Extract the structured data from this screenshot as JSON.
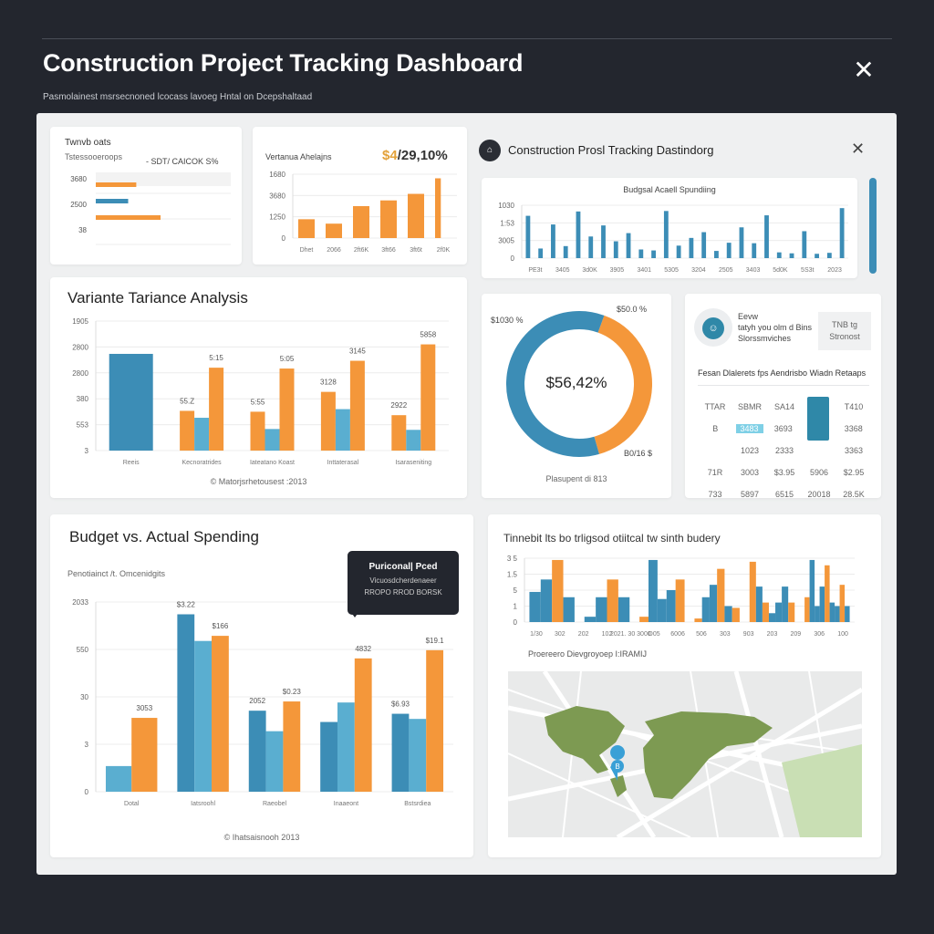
{
  "colors": {
    "orange": "#f4973a",
    "blue": "#3c8db6",
    "lightblue": "#5aaed0",
    "dark": "#23262e",
    "map_green": "#7d9a52"
  },
  "header": {
    "title": "Construction Project Tracking Dashboard",
    "subtitle": "Pasmolainest msrsecnoned lcocass lavoeg Hntal on Dcepshaltaad",
    "close_icon": "close-icon"
  },
  "card1": {
    "title": "Twnvb oats",
    "subtitle": "Tstessooeroops",
    "legend": "- SDT/ CAICOK S%",
    "chart": {
      "ticks": [
        "3680",
        "2500",
        "38"
      ],
      "bars": [
        {
          "v": 30,
          "c": "orange"
        },
        {
          "v": 24,
          "c": "blue"
        },
        {
          "v": 48,
          "c": "orange"
        }
      ],
      "xmax": 100
    }
  },
  "card2": {
    "title": "Vertanua Ahelajns",
    "value_highlight": "$4",
    "value_rest": "/29,10%",
    "chart": {
      "ymax": 3900,
      "ticks": [
        "0",
        "1250",
        "3680",
        "1680"
      ],
      "xlabels": [
        "Dhet",
        "2066",
        "2ft6K",
        "3ft66",
        "3ft6t",
        "2f0K"
      ],
      "groups": [
        [
          {
            "v": 1150,
            "c": "orange"
          }
        ],
        [
          {
            "v": 880,
            "c": "orange"
          }
        ],
        [
          {
            "v": 1950,
            "c": "orange"
          }
        ],
        [
          {
            "v": 2300,
            "c": "orange"
          }
        ],
        [
          {
            "v": 2700,
            "c": "orange"
          }
        ],
        [
          {
            "v": 3650,
            "c": "orange",
            "thin": true
          }
        ]
      ]
    }
  },
  "window": {
    "title": "Construction Prosl Tracking Dastindorg",
    "chart_title": "Budgsal Acaell Spundiing",
    "chart": {
      "ymax": 1.1,
      "ticks": [
        "0",
        "3005",
        "1:53",
        "1030"
      ],
      "xlabels": [
        "PE3t",
        "3405",
        "3d0K",
        "3905",
        "3401",
        "5305",
        "3204",
        "2505",
        "3403",
        "5d0K",
        "5S3t",
        "2023"
      ],
      "groups": [
        [
          {
            "v": 0.88,
            "c": "blue"
          }
        ],
        [
          {
            "v": 0.2,
            "c": "blue"
          }
        ],
        [
          {
            "v": 0.7,
            "c": "blue"
          }
        ],
        [
          {
            "v": 0.25,
            "c": "blue"
          }
        ],
        [
          {
            "v": 0.97,
            "c": "blue"
          }
        ],
        [
          {
            "v": 0.45,
            "c": "blue"
          }
        ],
        [
          {
            "v": 0.68,
            "c": "blue"
          }
        ],
        [
          {
            "v": 0.35,
            "c": "blue"
          }
        ],
        [
          {
            "v": 0.52,
            "c": "blue"
          }
        ],
        [
          {
            "v": 0.18,
            "c": "blue"
          }
        ],
        [
          {
            "v": 0.16,
            "c": "blue"
          }
        ],
        [
          {
            "v": 0.98,
            "c": "blue"
          }
        ],
        [
          {
            "v": 0.26,
            "c": "blue"
          }
        ],
        [
          {
            "v": 0.42,
            "c": "blue"
          }
        ],
        [
          {
            "v": 0.54,
            "c": "blue"
          }
        ],
        [
          {
            "v": 0.15,
            "c": "blue"
          }
        ],
        [
          {
            "v": 0.32,
            "c": "blue"
          }
        ],
        [
          {
            "v": 0.64,
            "c": "blue"
          }
        ],
        [
          {
            "v": 0.31,
            "c": "blue"
          }
        ],
        [
          {
            "v": 0.89,
            "c": "blue"
          }
        ],
        [
          {
            "v": 0.12,
            "c": "blue"
          }
        ],
        [
          {
            "v": 0.1,
            "c": "blue"
          }
        ],
        [
          {
            "v": 0.56,
            "c": "blue"
          }
        ],
        [
          {
            "v": 0.09,
            "c": "blue"
          }
        ],
        [
          {
            "v": 0.11,
            "c": "blue"
          }
        ],
        [
          {
            "v": 1.04,
            "c": "blue"
          }
        ]
      ]
    }
  },
  "variance": {
    "title": "Variante Tariance Analysis",
    "footer": "© Matorjsrhetousest :2013",
    "chart": {
      "ymax": 150,
      "ticks": [
        "3",
        "553",
        "380",
        "2800",
        "2800",
        "1905"
      ],
      "xlabels": [
        "Reeis",
        "Kecnoratrides",
        "Iateatano Koast",
        "Inttaterasal",
        "Isaraseniting"
      ],
      "groups": [
        [
          {
            "v": 112,
            "c": "blue"
          }
        ],
        [
          {
            "v": 46,
            "c": "orange",
            "label": "55.Z"
          },
          {
            "v": 38,
            "c": "lightblue"
          },
          {
            "v": 96,
            "c": "orange",
            "label": "5:15"
          }
        ],
        [
          {
            "v": 45,
            "c": "orange",
            "label": "5:55"
          },
          {
            "v": 25,
            "c": "lightblue"
          },
          {
            "v": 95,
            "c": "orange",
            "label": "5:05"
          }
        ],
        [
          {
            "v": 68,
            "c": "orange",
            "label": "3128"
          },
          {
            "v": 48,
            "c": "lightblue"
          },
          {
            "v": 104,
            "c": "orange",
            "label": "3145"
          }
        ],
        [
          {
            "v": 41,
            "c": "orange",
            "label": "2922"
          },
          {
            "v": 24,
            "c": "lightblue"
          },
          {
            "v": 123,
            "c": "orange",
            "label": "5858"
          }
        ]
      ]
    }
  },
  "donut": {
    "center": "$56,42%",
    "label_left": "$1030 %",
    "label_top": "$50.0 %",
    "label_bottom": "B0/16 $",
    "caption": "Plasupent di 813",
    "chart": {
      "type": "pie",
      "values": [
        40,
        60
      ],
      "colors": [
        "orange",
        "blue"
      ]
    }
  },
  "info": {
    "line1": "Eevw",
    "line2": "tatyh you olm d Bins",
    "line3": "Slorssmviches",
    "badge": "TNB tg Stronost",
    "heading": "Fesan Dlalerets fps Aendrisbo Wiadn Retaaps",
    "table": [
      [
        "TTAR",
        "SBMR",
        "SA14",
        "",
        "T410"
      ],
      [
        "B",
        "3483",
        "3693",
        "",
        "3368"
      ],
      [
        "",
        "1023",
        "2333",
        "",
        "3363"
      ],
      [
        "71R",
        "3003",
        "$3.95",
        "5906",
        "$2.95"
      ],
      [
        "733",
        "5897",
        "6515",
        "20018",
        "28.5K"
      ]
    ]
  },
  "budget": {
    "title": "Budget vs. Actual Spending",
    "subtitle": "Penotiainct /t. Omcenidgits",
    "footer": "© Ihatsaisnooh 2013",
    "tooltip": {
      "title": "Puriconal| Pced",
      "line1": "Vicuosdcherdenaeer",
      "line2": "RROPO RROD BORSK"
    },
    "chart": {
      "ymax": 185,
      "ticks": [
        "0",
        "3",
        "30",
        "550",
        "2033"
      ],
      "xlabels": [
        "Dotal",
        "Iatsroohl",
        "Raeobel",
        "Inaaeont",
        "Bstsrdiea"
      ],
      "groups": [
        [
          {
            "v": 25,
            "c": "lightblue"
          },
          {
            "v": 72,
            "c": "orange",
            "label": "3053"
          }
        ],
        [
          {
            "v": 173,
            "c": "blue",
            "label": "$3.22"
          },
          {
            "v": 147,
            "c": "lightblue"
          },
          {
            "v": 152,
            "c": "orange",
            "label": "$166"
          }
        ],
        [
          {
            "v": 79,
            "c": "blue",
            "label": "2052"
          },
          {
            "v": 59,
            "c": "lightblue"
          },
          {
            "v": 88,
            "c": "orange",
            "label": "$0.23"
          }
        ],
        [
          {
            "v": 68,
            "c": "blue"
          },
          {
            "v": 87,
            "c": "lightblue"
          },
          {
            "v": 130,
            "c": "orange",
            "label": "4832"
          }
        ],
        [
          {
            "v": 76,
            "c": "blue",
            "label": "$6.93"
          },
          {
            "v": 71,
            "c": "lightblue"
          },
          {
            "v": 138,
            "c": "orange",
            "label": "$19.1"
          }
        ]
      ]
    }
  },
  "timeline": {
    "title": "Tinnebit lts bo trligsod otiitcal tw sinth budery",
    "caption": "Proereero Dievgroyoep I:IRAMIJ",
    "chart": {
      "ymax": 3.6,
      "ticks": [
        "0",
        "1",
        "5",
        "1.5",
        "3 5"
      ],
      "xlabels": [
        "1/30",
        "302",
        "202",
        "102",
        "2021. 30 3000",
        "D05",
        "6006",
        "506",
        "303",
        "903",
        "203",
        "209",
        "306",
        "100"
      ],
      "groups": [
        [
          {
            "v": 1.7,
            "c": "blue"
          },
          {
            "v": 2.4,
            "c": "blue"
          },
          {
            "v": 3.5,
            "c": "orange"
          },
          {
            "v": 1.4,
            "c": "blue"
          }
        ],
        [
          {
            "v": 0.3,
            "c": "blue"
          },
          {
            "v": 1.4,
            "c": "blue"
          },
          {
            "v": 2.4,
            "c": "orange"
          },
          {
            "v": 1.4,
            "c": "blue"
          }
        ],
        [
          {
            "v": 0.3,
            "c": "orange"
          },
          {
            "v": 3.5,
            "c": "blue"
          },
          {
            "v": 1.3,
            "c": "blue"
          },
          {
            "v": 1.8,
            "c": "blue"
          },
          {
            "v": 2.4,
            "c": "orange"
          }
        ],
        [
          {
            "v": 0.2,
            "c": "orange"
          },
          {
            "v": 1.4,
            "c": "blue"
          },
          {
            "v": 2.1,
            "c": "blue"
          },
          {
            "v": 3.0,
            "c": "orange"
          },
          {
            "v": 0.9,
            "c": "blue"
          },
          {
            "v": 0.8,
            "c": "orange"
          }
        ],
        [
          {
            "v": 3.4,
            "c": "orange"
          },
          {
            "v": 2.0,
            "c": "blue"
          },
          {
            "v": 1.1,
            "c": "orange"
          },
          {
            "v": 0.5,
            "c": "blue"
          },
          {
            "v": 1.1,
            "c": "blue"
          },
          {
            "v": 2.0,
            "c": "blue"
          },
          {
            "v": 1.1,
            "c": "orange"
          }
        ],
        [
          {
            "v": 1.4,
            "c": "orange"
          },
          {
            "v": 3.5,
            "c": "blue"
          },
          {
            "v": 0.9,
            "c": "blue"
          },
          {
            "v": 2.0,
            "c": "blue"
          },
          {
            "v": 3.2,
            "c": "orange"
          },
          {
            "v": 1.1,
            "c": "blue"
          },
          {
            "v": 0.9,
            "c": "blue"
          },
          {
            "v": 2.1,
            "c": "orange"
          },
          {
            "v": 0.9,
            "c": "blue"
          }
        ]
      ]
    },
    "map": {
      "pin_icon": "map-pin-icon",
      "pin_label": "B"
    }
  }
}
